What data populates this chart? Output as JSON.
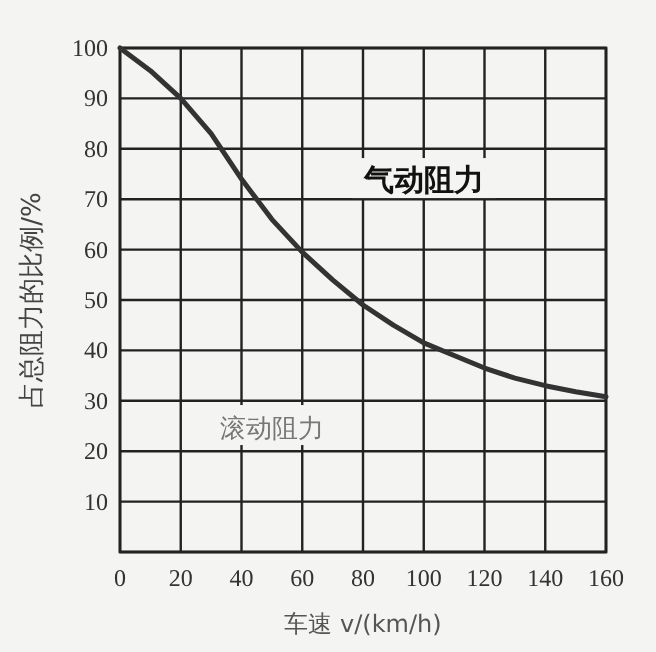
{
  "chart_data": {
    "type": "line",
    "xlabel": "车速 v/(km/h)",
    "ylabel": "占总阻力的比例/%",
    "annotations": [
      "气动阻力",
      "滚动阻力"
    ],
    "x": [
      0,
      10,
      20,
      30,
      40,
      50,
      60,
      70,
      80,
      90,
      100,
      110,
      120,
      130,
      140,
      150,
      160
    ],
    "series": [
      {
        "color": "#333333",
        "values": [
          100,
          95.5,
          90,
          83,
          74,
          66,
          59.5,
          54,
          49,
          45,
          41.5,
          39,
          36.5,
          34.5,
          33,
          31.8,
          30.8
        ]
      }
    ],
    "xlim": [
      0,
      160
    ],
    "ylim": [
      0,
      100
    ],
    "xticks": [
      0,
      20,
      40,
      60,
      80,
      100,
      120,
      140,
      160
    ],
    "yticks": [
      {
        "value": 0,
        "label": null
      },
      10,
      20,
      30,
      40,
      50,
      60,
      70,
      80,
      90,
      100
    ],
    "grid": true,
    "marker": "none",
    "line_style": "solid"
  }
}
